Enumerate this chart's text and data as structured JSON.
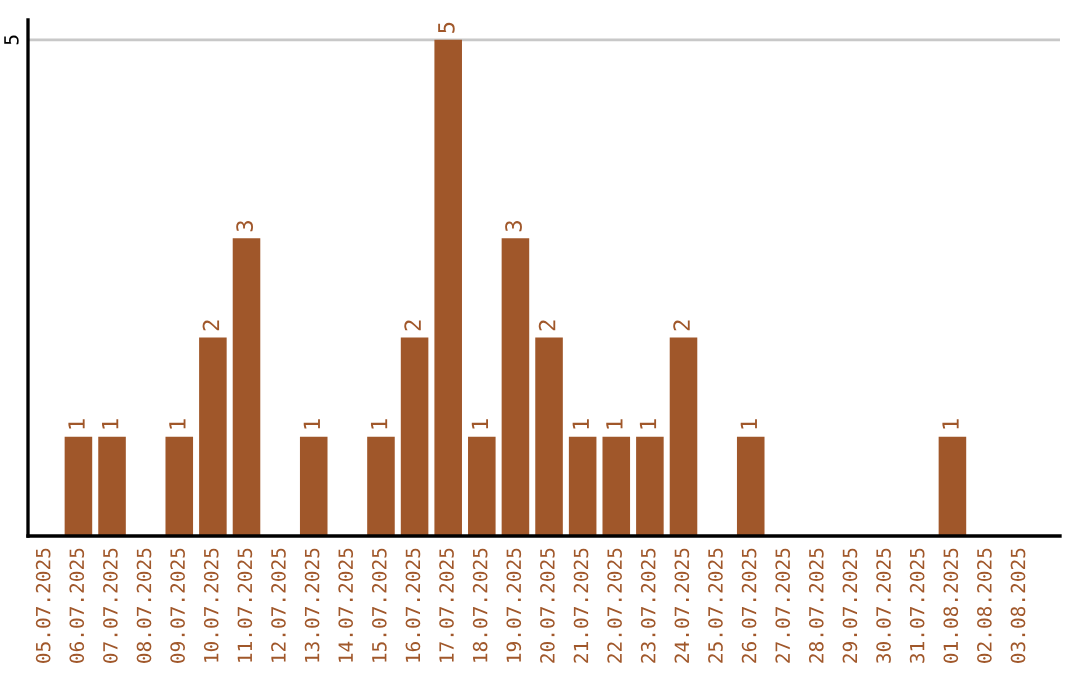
{
  "chart_data": {
    "type": "bar",
    "categories": [
      "05.07.2025",
      "06.07.2025",
      "07.07.2025",
      "08.07.2025",
      "09.07.2025",
      "10.07.2025",
      "11.07.2025",
      "12.07.2025",
      "13.07.2025",
      "14.07.2025",
      "15.07.2025",
      "16.07.2025",
      "17.07.2025",
      "18.07.2025",
      "19.07.2025",
      "20.07.2025",
      "21.07.2025",
      "22.07.2025",
      "23.07.2025",
      "24.07.2025",
      "25.07.2025",
      "26.07.2025",
      "27.07.2025",
      "28.07.2025",
      "29.07.2025",
      "30.07.2025",
      "31.07.2025",
      "01.08.2025",
      "02.08.2025",
      "03.08.2025"
    ],
    "values": [
      0,
      1,
      1,
      0,
      1,
      2,
      3,
      0,
      1,
      0,
      1,
      2,
      5,
      1,
      3,
      2,
      1,
      1,
      1,
      2,
      0,
      1,
      0,
      0,
      0,
      0,
      0,
      1,
      0,
      0
    ],
    "value_labels": [
      null,
      "1",
      "1",
      null,
      "1",
      "2",
      "3",
      null,
      "1",
      null,
      "1",
      "2",
      "5",
      "1",
      "3",
      "2",
      "1",
      "1",
      "1",
      "2",
      null,
      "1",
      null,
      null,
      null,
      null,
      null,
      "1",
      null,
      null
    ],
    "color": "#a0572a",
    "ylim": [
      0,
      5.2
    ],
    "yticks": [
      5
    ],
    "grid": "y"
  }
}
